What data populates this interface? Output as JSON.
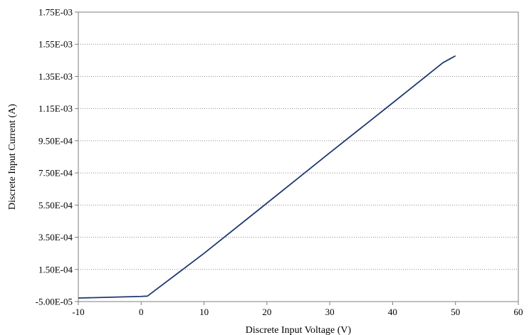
{
  "chart_data": {
    "type": "line",
    "title": "",
    "xlabel": "Discrete Input Voltage (V)",
    "ylabel": "Discrete Input Current (A)",
    "xlim": [
      -10,
      60
    ],
    "ylim": [
      -5e-05,
      0.00175
    ],
    "x_ticks": [
      -10,
      0,
      10,
      20,
      30,
      40,
      50,
      60
    ],
    "x_tick_labels": [
      "-10",
      "0",
      "10",
      "20",
      "30",
      "40",
      "50",
      "60"
    ],
    "y_ticks": [
      -5e-05,
      0.00015,
      0.00035,
      0.00055,
      0.00075,
      0.00095,
      0.00115,
      0.00135,
      0.00155,
      0.00175
    ],
    "y_tick_labels": [
      "-5.00E-05",
      "1.50E-04",
      "3.50E-04",
      "5.50E-04",
      "7.50E-04",
      "9.50E-04",
      "1.15E-03",
      "1.35E-03",
      "1.55E-03",
      "1.75E-03"
    ],
    "grid": "horizontal-dotted",
    "legend": "none",
    "series": [
      {
        "color": "#1f3a6e",
        "x": [
          -10,
          0,
          1,
          10,
          20,
          30,
          40,
          48,
          50
        ],
        "y": [
          -2.8e-05,
          -1.8e-05,
          -1.6e-05,
          0.00025,
          0.000562,
          0.000875,
          0.001185,
          0.001435,
          0.001478
        ]
      }
    ]
  }
}
